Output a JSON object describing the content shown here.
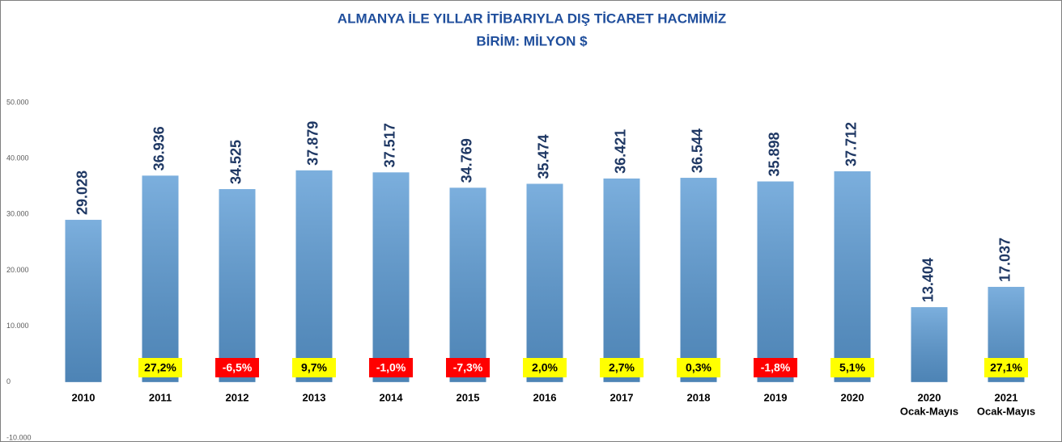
{
  "chart_data": {
    "type": "bar",
    "title": "ALMANYA İLE YILLAR İTİBARIYLA DIŞ TİCARET HACMİMİZ",
    "subtitle": "BİRİM: MİLYON $",
    "categories": [
      [
        "2010"
      ],
      [
        "2011"
      ],
      [
        "2012"
      ],
      [
        "2013"
      ],
      [
        "2014"
      ],
      [
        "2015"
      ],
      [
        "2016"
      ],
      [
        "2017"
      ],
      [
        "2018"
      ],
      [
        "2019"
      ],
      [
        "2020"
      ],
      [
        "2020",
        "Ocak-Mayıs"
      ],
      [
        "2021",
        "Ocak-Mayıs"
      ]
    ],
    "values": [
      29028,
      36936,
      34525,
      37879,
      37517,
      34769,
      35474,
      36421,
      36544,
      35898,
      37712,
      13404,
      17037
    ],
    "value_labels": [
      "29.028",
      "36.936",
      "34.525",
      "37.879",
      "37.517",
      "34.769",
      "35.474",
      "36.421",
      "36.544",
      "35.898",
      "37.712",
      "13.404",
      "17.037"
    ],
    "growth": [
      null,
      27.2,
      -6.5,
      9.7,
      -1.0,
      -7.3,
      2.0,
      2.7,
      0.3,
      -1.8,
      5.1,
      null,
      27.1
    ],
    "growth_labels": [
      null,
      "27,2%",
      "-6,5%",
      "9,7%",
      "-1,0%",
      "-7,3%",
      "2,0%",
      "2,7%",
      "0,3%",
      "-1,8%",
      "5,1%",
      null,
      "27,1%"
    ],
    "color": "#5b9bd5",
    "positive_color": "#ffff00",
    "negative_color": "#ff0000",
    "ylim": [
      -10000,
      50000
    ],
    "yticks": [
      {
        "value": -10000,
        "label": "-10.000"
      },
      0,
      {
        "value": 10000,
        "label": "10.000"
      },
      {
        "value": 20000,
        "label": "20.000"
      },
      {
        "value": 30000,
        "label": "30.000"
      },
      {
        "value": 40000,
        "label": "40.000"
      },
      {
        "value": 50000,
        "label": "50.000"
      }
    ],
    "grid": false
  }
}
